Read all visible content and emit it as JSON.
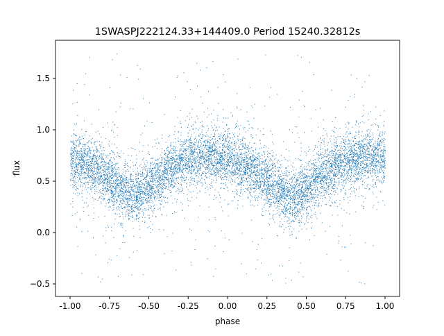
{
  "chart_data": {
    "type": "scatter",
    "title": "1SWASPJ222124.33+144409.0 Period 15240.32812s",
    "xlabel": "phase",
    "ylabel": "flux",
    "xlim": [
      -1.09,
      1.09
    ],
    "ylim": [
      -0.62,
      1.87
    ],
    "xticks": [
      "-1.00",
      "-0.75",
      "-0.50",
      "-0.25",
      "0.00",
      "0.25",
      "0.50",
      "0.75",
      "1.00"
    ],
    "xtick_values": [
      -1.0,
      -0.75,
      -0.5,
      -0.25,
      0.0,
      0.25,
      0.5,
      0.75,
      1.0
    ],
    "yticks": [
      "−0.5",
      "0.0",
      "0.5",
      "1.0",
      "1.5"
    ],
    "ytick_values": [
      -0.5,
      0.0,
      0.5,
      1.0,
      1.5
    ],
    "grid": false,
    "color": "#1f77b4",
    "binned_mean_curve": {
      "phase": [
        -1.0,
        -0.9,
        -0.8,
        -0.7,
        -0.6,
        -0.5,
        -0.4,
        -0.3,
        -0.2,
        -0.1,
        0.0,
        0.1,
        0.2,
        0.3,
        0.4,
        0.5,
        0.6,
        0.7,
        0.8,
        0.9,
        1.0
      ],
      "flux": [
        0.7,
        0.68,
        0.58,
        0.45,
        0.35,
        0.45,
        0.58,
        0.68,
        0.73,
        0.75,
        0.72,
        0.66,
        0.56,
        0.44,
        0.33,
        0.44,
        0.57,
        0.67,
        0.73,
        0.74,
        0.71
      ]
    },
    "flux_range": [
      -0.5,
      1.75
    ]
  }
}
